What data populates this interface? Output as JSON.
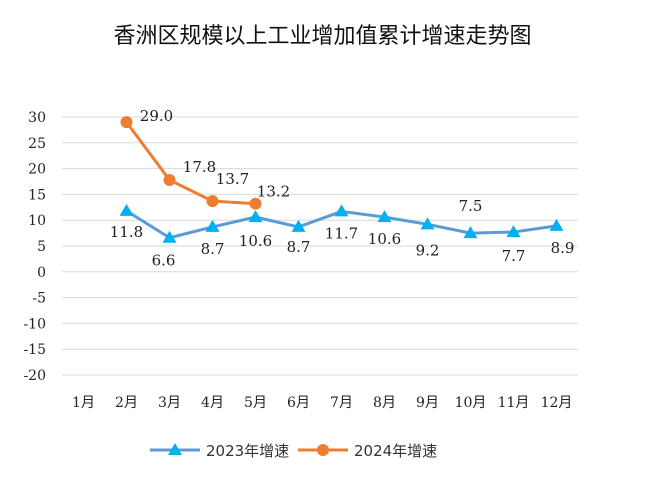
{
  "title": "香洲区规模以上工业增加值累计增速走势图",
  "chart_data": {
    "type": "line",
    "title": "香洲区规模以上工业增加值累计增速走势图",
    "categories": [
      "1月",
      "2月",
      "3月",
      "4月",
      "5月",
      "6月",
      "7月",
      "8月",
      "9月",
      "10月",
      "11月",
      "12月"
    ],
    "ylim": [
      -20,
      30
    ],
    "yticks": [
      30,
      25,
      20,
      15,
      10,
      5,
      0,
      -5,
      -10,
      -15,
      -20
    ],
    "grid": true,
    "legend_position": "bottom",
    "series": [
      {
        "name": "2023年增速",
        "color": "#5b9bd5",
        "marker": "triangle",
        "values": [
          null,
          11.8,
          6.6,
          8.7,
          10.6,
          8.7,
          11.7,
          10.6,
          9.2,
          7.5,
          7.7,
          8.9
        ],
        "labels": [
          null,
          "11.8",
          "6.6",
          "8.7",
          "10.6",
          "8.7",
          "11.7",
          "10.6",
          "9.2",
          "7.5",
          "7.7",
          "8.9"
        ]
      },
      {
        "name": "2024年增速",
        "color": "#ed7d31",
        "marker": "circle",
        "values": [
          null,
          29.0,
          17.8,
          13.7,
          13.2,
          null,
          null,
          null,
          null,
          null,
          null,
          null
        ],
        "labels": [
          null,
          "29.0",
          "17.8",
          "13.7",
          "13.2",
          null,
          null,
          null,
          null,
          null,
          null,
          null
        ]
      }
    ]
  }
}
